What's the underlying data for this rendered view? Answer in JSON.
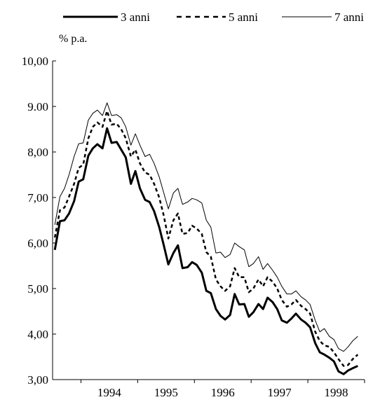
{
  "chart_data": {
    "type": "line",
    "ylabel": "% p.a.",
    "ylim": [
      3,
      10
    ],
    "y_ticks": [
      "3,00",
      "4,00",
      "5,00",
      "6,00",
      "7,00",
      "8,00",
      "9.00",
      "10,00"
    ],
    "y_tick_values": [
      3,
      4,
      5,
      6,
      7,
      8,
      9,
      10
    ],
    "x_tick_labels": [
      "1994",
      "1995",
      "1996",
      "1997",
      "1998"
    ],
    "x_tick_positions": [
      1994.5,
      1995.5,
      1996.5,
      1997.5,
      1998.5
    ],
    "xlim": [
      1993.5,
      1999.0
    ],
    "grid": false,
    "legend_position": "top",
    "series": [
      {
        "name": "3 anni",
        "style": "solid-thick",
        "color": "#000000",
        "x": [
          1993.54,
          1993.63,
          1993.71,
          1993.79,
          1993.88,
          1993.96,
          1994.04,
          1994.13,
          1994.21,
          1994.29,
          1994.38,
          1994.46,
          1994.54,
          1994.63,
          1994.71,
          1994.79,
          1994.88,
          1994.96,
          1995.04,
          1995.13,
          1995.21,
          1995.29,
          1995.38,
          1995.46,
          1995.54,
          1995.63,
          1995.71,
          1995.79,
          1995.88,
          1995.96,
          1996.04,
          1996.13,
          1996.21,
          1996.29,
          1996.38,
          1996.46,
          1996.54,
          1996.63,
          1996.71,
          1996.79,
          1996.88,
          1996.96,
          1997.04,
          1997.13,
          1997.21,
          1997.29,
          1997.38,
          1997.46,
          1997.54,
          1997.63,
          1997.71,
          1997.79,
          1997.88,
          1997.96,
          1998.04,
          1998.13,
          1998.21,
          1998.29,
          1998.38,
          1998.46,
          1998.54,
          1998.63,
          1998.71,
          1998.79,
          1998.88
        ],
        "y": [
          5.85,
          6.48,
          6.5,
          6.65,
          6.92,
          7.35,
          7.4,
          7.92,
          8.08,
          8.17,
          8.08,
          8.52,
          8.2,
          8.22,
          8.05,
          7.88,
          7.3,
          7.58,
          7.2,
          6.95,
          6.9,
          6.7,
          6.35,
          5.95,
          5.53,
          5.78,
          5.95,
          5.45,
          5.47,
          5.58,
          5.52,
          5.35,
          4.95,
          4.9,
          4.55,
          4.4,
          4.32,
          4.42,
          4.88,
          4.65,
          4.66,
          4.38,
          4.48,
          4.66,
          4.55,
          4.8,
          4.7,
          4.55,
          4.3,
          4.25,
          4.34,
          4.45,
          4.32,
          4.25,
          4.15,
          3.8,
          3.6,
          3.55,
          3.48,
          3.4,
          3.18,
          3.12,
          3.2,
          3.25,
          3.3
        ]
      },
      {
        "name": "5 anni",
        "style": "dashed",
        "color": "#000000",
        "x": [
          1993.54,
          1993.63,
          1993.71,
          1993.79,
          1993.88,
          1993.96,
          1994.04,
          1994.13,
          1994.21,
          1994.29,
          1994.38,
          1994.46,
          1994.54,
          1994.63,
          1994.71,
          1994.79,
          1994.88,
          1994.96,
          1995.04,
          1995.13,
          1995.21,
          1995.29,
          1995.38,
          1995.46,
          1995.54,
          1995.63,
          1995.71,
          1995.79,
          1995.88,
          1995.96,
          1996.04,
          1996.13,
          1996.21,
          1996.29,
          1996.38,
          1996.46,
          1996.54,
          1996.63,
          1996.71,
          1996.79,
          1996.88,
          1996.96,
          1997.04,
          1997.13,
          1997.21,
          1997.29,
          1997.38,
          1997.46,
          1997.54,
          1997.63,
          1997.71,
          1997.79,
          1997.88,
          1997.96,
          1998.04,
          1998.13,
          1998.21,
          1998.29,
          1998.38,
          1998.46,
          1998.54,
          1998.63,
          1998.71,
          1998.79,
          1998.88
        ],
        "y": [
          6.12,
          6.72,
          6.78,
          7.02,
          7.3,
          7.65,
          7.72,
          8.3,
          8.55,
          8.65,
          8.55,
          8.9,
          8.6,
          8.62,
          8.5,
          8.3,
          7.9,
          8.05,
          7.75,
          7.55,
          7.5,
          7.3,
          7.0,
          6.6,
          6.1,
          6.5,
          6.65,
          6.2,
          6.22,
          6.38,
          6.32,
          6.2,
          5.8,
          5.7,
          5.2,
          5.05,
          4.95,
          5.05,
          5.45,
          5.25,
          5.25,
          4.92,
          5.0,
          5.2,
          5.05,
          5.25,
          5.15,
          5.0,
          4.75,
          4.6,
          4.65,
          4.75,
          4.62,
          4.55,
          4.45,
          4.05,
          3.85,
          3.75,
          3.72,
          3.6,
          3.45,
          3.3,
          3.32,
          3.45,
          3.55
        ]
      },
      {
        "name": "7 anni",
        "style": "solid-thin",
        "color": "#000000",
        "x": [
          1993.54,
          1993.63,
          1993.71,
          1993.79,
          1993.88,
          1993.96,
          1994.04,
          1994.13,
          1994.21,
          1994.29,
          1994.38,
          1994.46,
          1994.54,
          1994.63,
          1994.71,
          1994.79,
          1994.88,
          1994.96,
          1995.04,
          1995.13,
          1995.21,
          1995.29,
          1995.38,
          1995.46,
          1995.54,
          1995.63,
          1995.71,
          1995.79,
          1995.88,
          1995.96,
          1996.04,
          1996.13,
          1996.21,
          1996.29,
          1996.38,
          1996.46,
          1996.54,
          1996.63,
          1996.71,
          1996.79,
          1996.88,
          1996.96,
          1997.04,
          1997.13,
          1997.21,
          1997.29,
          1997.38,
          1997.46,
          1997.54,
          1997.63,
          1997.71,
          1997.79,
          1997.88,
          1997.96,
          1998.04,
          1998.13,
          1998.21,
          1998.29,
          1998.38,
          1998.46,
          1998.54,
          1998.63,
          1998.71,
          1998.79,
          1998.88
        ],
        "y": [
          6.4,
          7.02,
          7.2,
          7.5,
          7.9,
          8.18,
          8.2,
          8.7,
          8.85,
          8.92,
          8.8,
          9.08,
          8.8,
          8.82,
          8.75,
          8.55,
          8.15,
          8.4,
          8.15,
          7.9,
          7.95,
          7.75,
          7.45,
          7.1,
          6.75,
          7.1,
          7.2,
          6.85,
          6.9,
          6.98,
          6.95,
          6.88,
          6.5,
          6.35,
          5.78,
          5.8,
          5.68,
          5.75,
          6.0,
          5.92,
          5.85,
          5.48,
          5.55,
          5.7,
          5.42,
          5.55,
          5.4,
          5.25,
          5.05,
          4.88,
          4.88,
          4.95,
          4.82,
          4.75,
          4.65,
          4.3,
          4.05,
          4.12,
          3.95,
          3.88,
          3.68,
          3.62,
          3.72,
          3.85,
          3.95
        ]
      }
    ]
  }
}
